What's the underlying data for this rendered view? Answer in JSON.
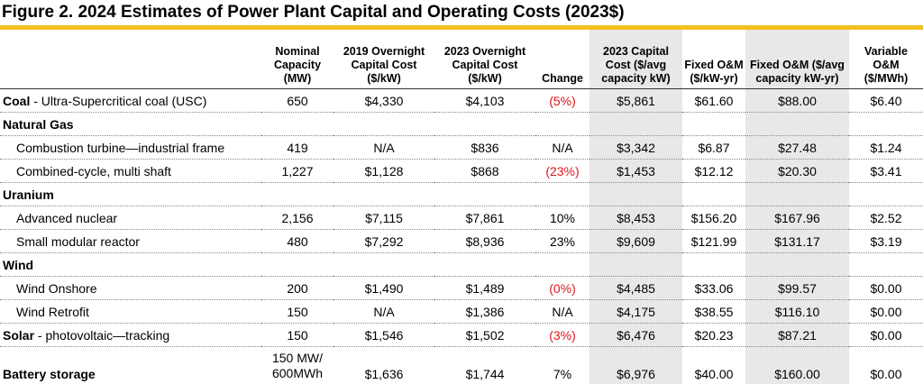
{
  "title": "Figure 2. 2024 Estimates of Power Plant Capital and Operating Costs (2023$)",
  "headers": [
    "",
    "Nominal Capacity (MW)",
    "2019 Overnight Capital Cost ($/kW)",
    "2023 Overnight Capital Cost ($/kW)",
    "Change",
    "2023 Capital Cost ($/avg capacity kW)",
    "Fixed O&M ($/kW-yr)",
    "Fixed O&M ($/avg capacity kW-yr)",
    "Variable O&M ($/MWh)"
  ],
  "rows": {
    "coal": {
      "bold": "Coal",
      "rest": " - Ultra-Supercritical coal (USC)",
      "cap": "650",
      "c2019": "$4,330",
      "c2023": "$4,103",
      "change": "(5%)",
      "capcost": "$5,861",
      "fom": "$61.60",
      "fomavg": "$88.00",
      "vom": "$6.40"
    },
    "natural_gas_label": "Natural Gas",
    "ct": {
      "label": "Combustion turbine—industrial frame",
      "cap": "419",
      "c2019": "N/A",
      "c2023": "$836",
      "change": "N/A",
      "capcost": "$3,342",
      "fom": "$6.87",
      "fomavg": "$27.48",
      "vom": "$1.24"
    },
    "cc": {
      "label": "Combined-cycle, multi shaft",
      "cap": "1,227",
      "c2019": "$1,128",
      "c2023": "$868",
      "change": "(23%)",
      "capcost": "$1,453",
      "fom": "$12.12",
      "fomavg": "$20.30",
      "vom": "$3.41"
    },
    "uranium_label": "Uranium",
    "nuclear": {
      "label": "Advanced nuclear",
      "cap": "2,156",
      "c2019": "$7,115",
      "c2023": "$7,861",
      "change": "10%",
      "capcost": "$8,453",
      "fom": "$156.20",
      "fomavg": "$167.96",
      "vom": "$2.52"
    },
    "smr": {
      "label": "Small modular reactor",
      "cap": "480",
      "c2019": "$7,292",
      "c2023": "$8,936",
      "change": "23%",
      "capcost": "$9,609",
      "fom": "$121.99",
      "fomavg": "$131.17",
      "vom": "$3.19"
    },
    "wind_label": "Wind",
    "onshore": {
      "label": "Wind Onshore",
      "cap": "200",
      "c2019": "$1,490",
      "c2023": "$1,489",
      "change": "(0%)",
      "capcost": "$4,485",
      "fom": "$33.06",
      "fomavg": "$99.57",
      "vom": "$0.00"
    },
    "retrofit": {
      "label": "Wind Retrofit",
      "cap": "150",
      "c2019": "N/A",
      "c2023": "$1,386",
      "change": "N/A",
      "capcost": "$4,175",
      "fom": "$38.55",
      "fomavg": "$116.10",
      "vom": "$0.00"
    },
    "solar": {
      "bold": "Solar",
      "rest": " - photovoltaic—tracking",
      "cap": "150",
      "c2019": "$1,546",
      "c2023": "$1,502",
      "change": "(3%)",
      "capcost": "$6,476",
      "fom": "$20.23",
      "fomavg": "$87.21",
      "vom": "$0.00"
    },
    "battery": {
      "label": "Battery storage",
      "cap_line1": "150 MW/",
      "cap_line2": "600MWh",
      "c2019": "$1,636",
      "c2023": "$1,744",
      "change": "7%",
      "capcost": "$6,976",
      "fom": "$40.00",
      "fomavg": "$160.00",
      "vom": "$0.00"
    }
  }
}
